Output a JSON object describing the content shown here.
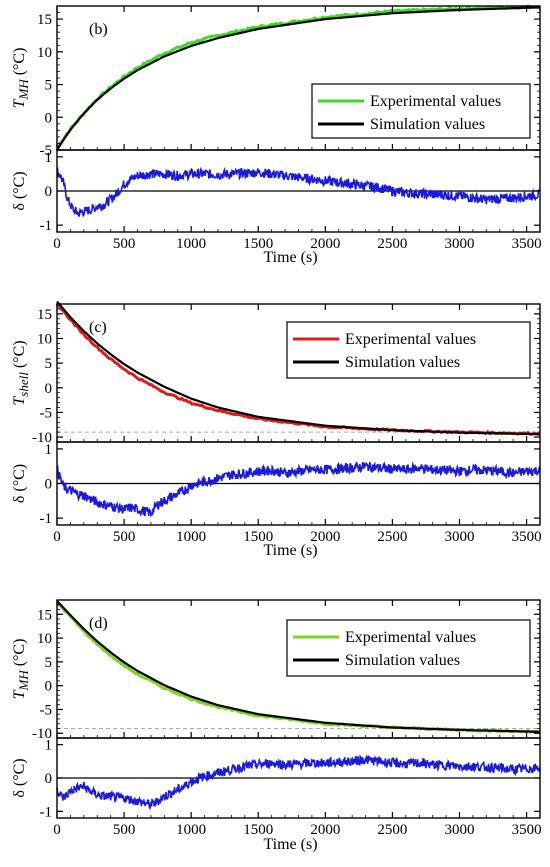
{
  "chart_data": [
    {
      "type": "line",
      "panel_label": "(b)",
      "ylabel_main": "T",
      "ylabel_sub": "MH",
      "ylabel_unit": "(°C)",
      "ylim": [
        -5,
        17
      ],
      "yticks": [
        -5,
        0,
        5,
        10,
        15
      ],
      "reference_line": 17,
      "legend_position": "bottom-right",
      "series": [
        {
          "name": "Experimental values",
          "color": "#3ddc1f",
          "x": [
            0,
            50,
            100,
            200,
            300,
            400,
            500,
            600,
            800,
            1000,
            1200,
            1500,
            2000,
            2500,
            3000,
            3600
          ],
          "y": [
            -4.5,
            -3.2,
            -1.8,
            0.6,
            2.8,
            4.6,
            6.2,
            7.6,
            9.8,
            11.4,
            12.5,
            13.8,
            15.3,
            16.2,
            16.6,
            16.9
          ]
        },
        {
          "name": "Simulation values",
          "color": "#000000",
          "x": [
            0,
            50,
            100,
            200,
            300,
            400,
            500,
            600,
            800,
            1000,
            1200,
            1500,
            2000,
            2500,
            3000,
            3600
          ],
          "y": [
            -5,
            -3.4,
            -1.9,
            0.6,
            2.7,
            4.4,
            5.9,
            7.2,
            9.3,
            10.9,
            12.1,
            13.5,
            15.0,
            15.9,
            16.4,
            16.8
          ]
        }
      ],
      "residual": {
        "ylabel": "δ (°C)",
        "ylim": [
          -1.2,
          1.2
        ],
        "yticks": [
          -1,
          0,
          1
        ],
        "color": "#1a1adc",
        "x": [
          0,
          20,
          50,
          80,
          120,
          160,
          200,
          250,
          300,
          350,
          400,
          450,
          500,
          550,
          600,
          700,
          800,
          900,
          1000,
          1100,
          1200,
          1300,
          1400,
          1500,
          1600,
          1700,
          1800,
          1900,
          2000,
          2100,
          2200,
          2300,
          2400,
          2500,
          2600,
          2700,
          2800,
          2900,
          3000,
          3100,
          3200,
          3300,
          3400,
          3500,
          3600
        ],
        "y": [
          0.55,
          0.5,
          0.2,
          -0.25,
          -0.55,
          -0.65,
          -0.6,
          -0.55,
          -0.45,
          -0.4,
          -0.25,
          -0.05,
          0.2,
          0.35,
          0.45,
          0.5,
          0.5,
          0.45,
          0.5,
          0.5,
          0.48,
          0.5,
          0.52,
          0.55,
          0.5,
          0.45,
          0.4,
          0.35,
          0.3,
          0.25,
          0.2,
          0.15,
          0.1,
          0.0,
          -0.05,
          -0.08,
          -0.1,
          -0.12,
          -0.15,
          -0.2,
          -0.25,
          -0.22,
          -0.2,
          -0.15,
          -0.1
        ]
      }
    },
    {
      "type": "line",
      "panel_label": "(c)",
      "ylabel_main": "T",
      "ylabel_sub": "shell",
      "ylabel_unit": "(°C)",
      "ylim": [
        -11,
        17
      ],
      "yticks": [
        -10,
        -5,
        0,
        5,
        10,
        15
      ],
      "reference_line": -9,
      "legend_position": "top-right",
      "series": [
        {
          "name": "Experimental values",
          "color": "#e41a1a",
          "x": [
            0,
            50,
            100,
            200,
            300,
            400,
            500,
            600,
            800,
            1000,
            1200,
            1500,
            2000,
            2500,
            3000,
            3600
          ],
          "y": [
            17,
            15.5,
            13.8,
            10.8,
            8.2,
            5.8,
            3.8,
            2.0,
            -0.9,
            -3.1,
            -4.6,
            -6.3,
            -7.9,
            -8.6,
            -9.0,
            -9.3
          ]
        },
        {
          "name": "Simulation values",
          "color": "#000000",
          "x": [
            0,
            50,
            100,
            200,
            300,
            400,
            500,
            600,
            800,
            1000,
            1200,
            1500,
            2000,
            2500,
            3000,
            3600
          ],
          "y": [
            17.5,
            15.9,
            14.3,
            11.5,
            9.0,
            6.8,
            4.8,
            3.1,
            0.2,
            -2.2,
            -4.0,
            -5.9,
            -7.7,
            -8.6,
            -9.1,
            -9.4
          ]
        }
      ],
      "residual": {
        "ylabel": "δ (°C)",
        "ylim": [
          -1.2,
          1.2
        ],
        "yticks": [
          -1,
          0,
          1
        ],
        "color": "#1a1adc",
        "x": [
          0,
          20,
          50,
          100,
          150,
          200,
          250,
          300,
          350,
          400,
          450,
          500,
          550,
          600,
          650,
          700,
          750,
          800,
          850,
          900,
          950,
          1000,
          1100,
          1200,
          1300,
          1400,
          1500,
          1600,
          1700,
          1800,
          1900,
          2000,
          2100,
          2200,
          2300,
          2400,
          2500,
          2600,
          2700,
          2800,
          2900,
          3000,
          3100,
          3200,
          3300,
          3400,
          3500,
          3600
        ],
        "y": [
          0.4,
          0.2,
          -0.1,
          -0.2,
          -0.3,
          -0.35,
          -0.45,
          -0.55,
          -0.6,
          -0.65,
          -0.7,
          -0.75,
          -0.7,
          -0.75,
          -0.8,
          -0.85,
          -0.6,
          -0.5,
          -0.4,
          -0.3,
          -0.2,
          -0.05,
          0.05,
          0.15,
          0.25,
          0.3,
          0.35,
          0.38,
          0.3,
          0.35,
          0.4,
          0.4,
          0.42,
          0.45,
          0.5,
          0.45,
          0.42,
          0.4,
          0.45,
          0.4,
          0.38,
          0.35,
          0.4,
          0.38,
          0.35,
          0.3,
          0.35,
          0.38
        ]
      }
    },
    {
      "type": "line",
      "panel_label": "(d)",
      "ylabel_main": "T",
      "ylabel_sub": "MH",
      "ylabel_unit": "(°C)",
      "ylim": [
        -11,
        18
      ],
      "yticks": [
        -10,
        -5,
        0,
        5,
        10,
        15
      ],
      "reference_line": -9,
      "legend_position": "top-right",
      "series": [
        {
          "name": "Experimental values",
          "color": "#7fd420",
          "x": [
            0,
            50,
            100,
            200,
            300,
            400,
            500,
            600,
            800,
            1000,
            1200,
            1500,
            2000,
            2500,
            3000,
            3600
          ],
          "y": [
            17.5,
            16.0,
            14.5,
            11.4,
            8.7,
            6.3,
            4.2,
            2.4,
            -0.5,
            -2.8,
            -4.5,
            -6.3,
            -8.0,
            -8.8,
            -9.3,
            -9.7
          ]
        },
        {
          "name": "Simulation values",
          "color": "#000000",
          "x": [
            0,
            50,
            100,
            200,
            300,
            400,
            500,
            600,
            800,
            1000,
            1200,
            1500,
            2000,
            2500,
            3000,
            3600
          ],
          "y": [
            17.8,
            16.3,
            14.8,
            11.9,
            9.3,
            7.0,
            4.9,
            3.1,
            0.1,
            -2.3,
            -4.1,
            -6.0,
            -7.8,
            -8.8,
            -9.3,
            -9.7
          ]
        }
      ],
      "residual": {
        "ylabel": "δ (°C)",
        "ylim": [
          -1.2,
          1.2
        ],
        "yticks": [
          -1,
          0,
          1
        ],
        "color": "#1a1adc",
        "x": [
          0,
          20,
          50,
          100,
          150,
          200,
          250,
          300,
          350,
          400,
          450,
          500,
          550,
          600,
          650,
          700,
          750,
          800,
          850,
          900,
          950,
          1000,
          1100,
          1200,
          1300,
          1400,
          1500,
          1600,
          1700,
          1800,
          1900,
          2000,
          2100,
          2200,
          2300,
          2400,
          2500,
          2600,
          2700,
          2800,
          2900,
          3000,
          3100,
          3200,
          3300,
          3400,
          3500,
          3600
        ],
        "y": [
          -0.3,
          -0.5,
          -0.6,
          -0.4,
          -0.3,
          -0.25,
          -0.4,
          -0.5,
          -0.55,
          -0.55,
          -0.6,
          -0.6,
          -0.65,
          -0.7,
          -0.75,
          -0.8,
          -0.7,
          -0.55,
          -0.45,
          -0.35,
          -0.25,
          -0.1,
          0.05,
          0.15,
          0.25,
          0.35,
          0.4,
          0.45,
          0.4,
          0.42,
          0.45,
          0.45,
          0.48,
          0.5,
          0.55,
          0.5,
          0.45,
          0.42,
          0.45,
          0.4,
          0.38,
          0.35,
          0.35,
          0.32,
          0.3,
          0.25,
          0.28,
          0.3
        ]
      }
    }
  ],
  "shared": {
    "xlabel": "Time (s)",
    "xlim": [
      0,
      3600
    ],
    "xticks": [
      0,
      500,
      1000,
      1500,
      2000,
      2500,
      3000,
      3500
    ]
  }
}
